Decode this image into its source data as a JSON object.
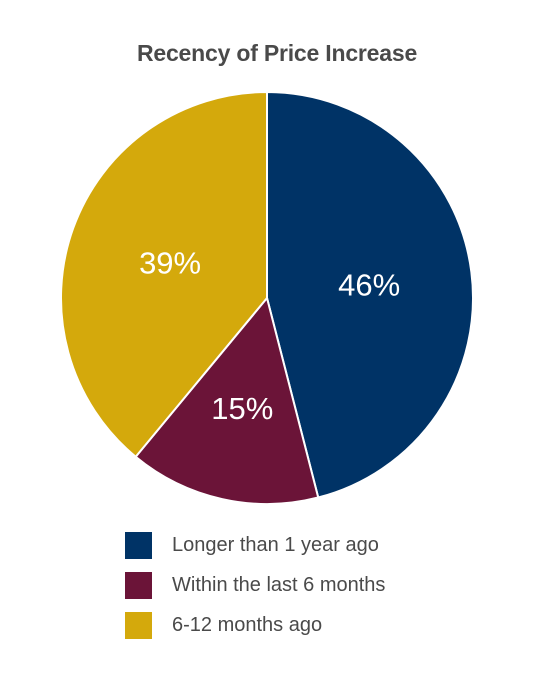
{
  "chart_data": {
    "type": "pie",
    "title": "Recency of Price Increase",
    "categories": [
      "Longer than 1 year ago",
      "Within the last 6 months",
      "6-12 months ago"
    ],
    "values": [
      46,
      15,
      39
    ],
    "labels": [
      "46%",
      "15%",
      "39%"
    ],
    "colors": [
      "#003366",
      "#6b1438",
      "#d4a90c"
    ],
    "start": "12 o'clock",
    "direction": "clockwise",
    "legend": "bottom"
  }
}
